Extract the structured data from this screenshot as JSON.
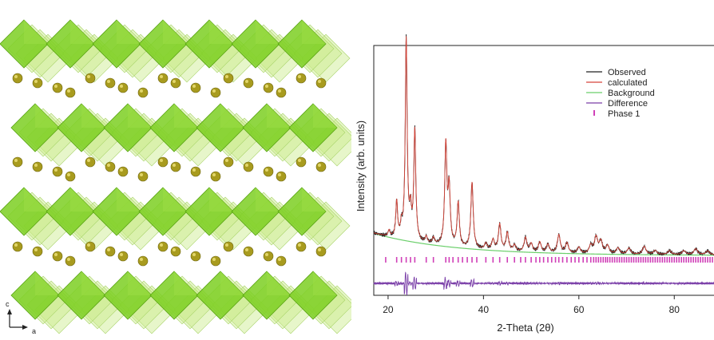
{
  "crystal_panel": {
    "axis_labels": {
      "c": "c",
      "a": "a"
    },
    "colors": {
      "octahedron_dark": "#7ccf22",
      "octahedron_light": "#c9ea8a",
      "atom": "#a89b1e"
    }
  },
  "chart_data": {
    "type": "line",
    "xlabel": "2-Theta (2θ)",
    "ylabel": "Intensity (arb. units)",
    "xlim": [
      17,
      89
    ],
    "x_ticks": [
      20,
      40,
      60,
      80
    ],
    "x_tick_labels": [
      "20",
      "40",
      "60",
      "80"
    ],
    "y_tick_labels": [],
    "grid": false,
    "legend_position": "top-right",
    "legend": [
      {
        "label": "Observed",
        "color": "#222222",
        "style": "line"
      },
      {
        "label": "calculated",
        "color": "#d6453a",
        "style": "line"
      },
      {
        "label": "Background",
        "color": "#6bcf6b",
        "style": "line"
      },
      {
        "label": "Difference",
        "color": "#7a3ea8",
        "style": "line"
      },
      {
        "label": "Phase 1",
        "color": "#d040b8",
        "style": "tick"
      }
    ],
    "peaks": [
      {
        "x": 20.2,
        "h": 0.03
      },
      {
        "x": 21.8,
        "h": 0.18
      },
      {
        "x": 22.8,
        "h": 0.06
      },
      {
        "x": 23.8,
        "h": 1.0
      },
      {
        "x": 24.7,
        "h": 0.13
      },
      {
        "x": 25.6,
        "h": 0.55
      },
      {
        "x": 28.0,
        "h": 0.03
      },
      {
        "x": 29.5,
        "h": 0.03
      },
      {
        "x": 32.1,
        "h": 0.5
      },
      {
        "x": 32.8,
        "h": 0.28
      },
      {
        "x": 34.7,
        "h": 0.22
      },
      {
        "x": 37.6,
        "h": 0.33
      },
      {
        "x": 40.5,
        "h": 0.03
      },
      {
        "x": 42.0,
        "h": 0.05
      },
      {
        "x": 43.4,
        "h": 0.13
      },
      {
        "x": 45.0,
        "h": 0.09
      },
      {
        "x": 46.5,
        "h": 0.03
      },
      {
        "x": 48.8,
        "h": 0.07
      },
      {
        "x": 50.0,
        "h": 0.04
      },
      {
        "x": 51.8,
        "h": 0.05
      },
      {
        "x": 53.5,
        "h": 0.04
      },
      {
        "x": 55.8,
        "h": 0.09
      },
      {
        "x": 57.5,
        "h": 0.05
      },
      {
        "x": 60.0,
        "h": 0.03
      },
      {
        "x": 62.5,
        "h": 0.04
      },
      {
        "x": 63.6,
        "h": 0.08
      },
      {
        "x": 64.6,
        "h": 0.06
      },
      {
        "x": 66.0,
        "h": 0.04
      },
      {
        "x": 68.2,
        "h": 0.03
      },
      {
        "x": 70.5,
        "h": 0.03
      },
      {
        "x": 73.7,
        "h": 0.04
      },
      {
        "x": 76.0,
        "h": 0.02
      },
      {
        "x": 79.0,
        "h": 0.02
      },
      {
        "x": 82.0,
        "h": 0.02
      },
      {
        "x": 84.5,
        "h": 0.03
      },
      {
        "x": 87.0,
        "h": 0.02
      }
    ],
    "background": {
      "start": 0.11,
      "end": 0.0,
      "decay_per_degree": 0.06
    },
    "phase_tick_positions": [
      19.5,
      21.8,
      22.8,
      23.8,
      24.7,
      25.6,
      28.0,
      29.5,
      32.1,
      32.8,
      33.6,
      34.7,
      35.6,
      36.6,
      37.6,
      38.6,
      40.5,
      42.0,
      43.4,
      45.0,
      46.5,
      47.8,
      48.8,
      50.0,
      51.0,
      51.8,
      52.6,
      53.5,
      54.3,
      55.1,
      55.8,
      56.6,
      57.5,
      58.4,
      59.2,
      60.0,
      60.9,
      61.7,
      62.5,
      63.1,
      63.6,
      64.1,
      64.6,
      65.1,
      65.6,
      66.0,
      66.5,
      67.0,
      67.5,
      68.0,
      68.5,
      69.0,
      69.5,
      70.0,
      70.5,
      71.0,
      71.5,
      72.0,
      72.5,
      73.0,
      73.5,
      74.0,
      74.5,
      75.0,
      75.5,
      76.0,
      76.5,
      77.0,
      77.5,
      78.0,
      78.5,
      79.0,
      79.5,
      80.0,
      80.5,
      81.0,
      81.5,
      82.0,
      82.5,
      83.0,
      83.5,
      84.0,
      84.5,
      85.0,
      85.5,
      86.0,
      86.5,
      87.0,
      87.5,
      88.0,
      88.5
    ]
  }
}
